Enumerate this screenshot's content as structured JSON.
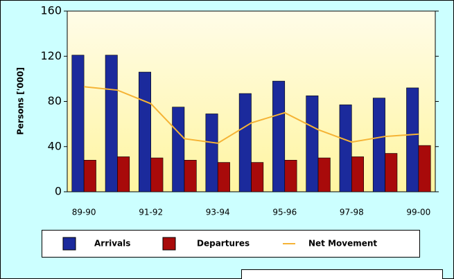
{
  "chart_data": {
    "type": "bar",
    "y_label": "Persons ['000]",
    "categories": [
      "89-90",
      null,
      "91-92",
      null,
      "93-94",
      null,
      "95-96",
      null,
      "97-98",
      null,
      "99-00"
    ],
    "series": [
      {
        "name": "Arrivals",
        "color": "#1b2a9c",
        "values": [
          121,
          121,
          106,
          75,
          69,
          87,
          98,
          85,
          77,
          83,
          92
        ]
      },
      {
        "name": "Departures",
        "color": "#a80a0a",
        "values": [
          28,
          31,
          30,
          28,
          26,
          26,
          28,
          30,
          31,
          34,
          41
        ]
      },
      {
        "name": "Net Movement",
        "color": "#f5b335",
        "type": "line",
        "values": [
          93,
          90,
          78,
          47,
          43,
          61,
          70,
          55,
          44,
          49,
          51
        ]
      }
    ],
    "ylim": [
      0,
      160
    ],
    "yticks": [
      0,
      40,
      80,
      120,
      160
    ],
    "legend": "bottom"
  }
}
